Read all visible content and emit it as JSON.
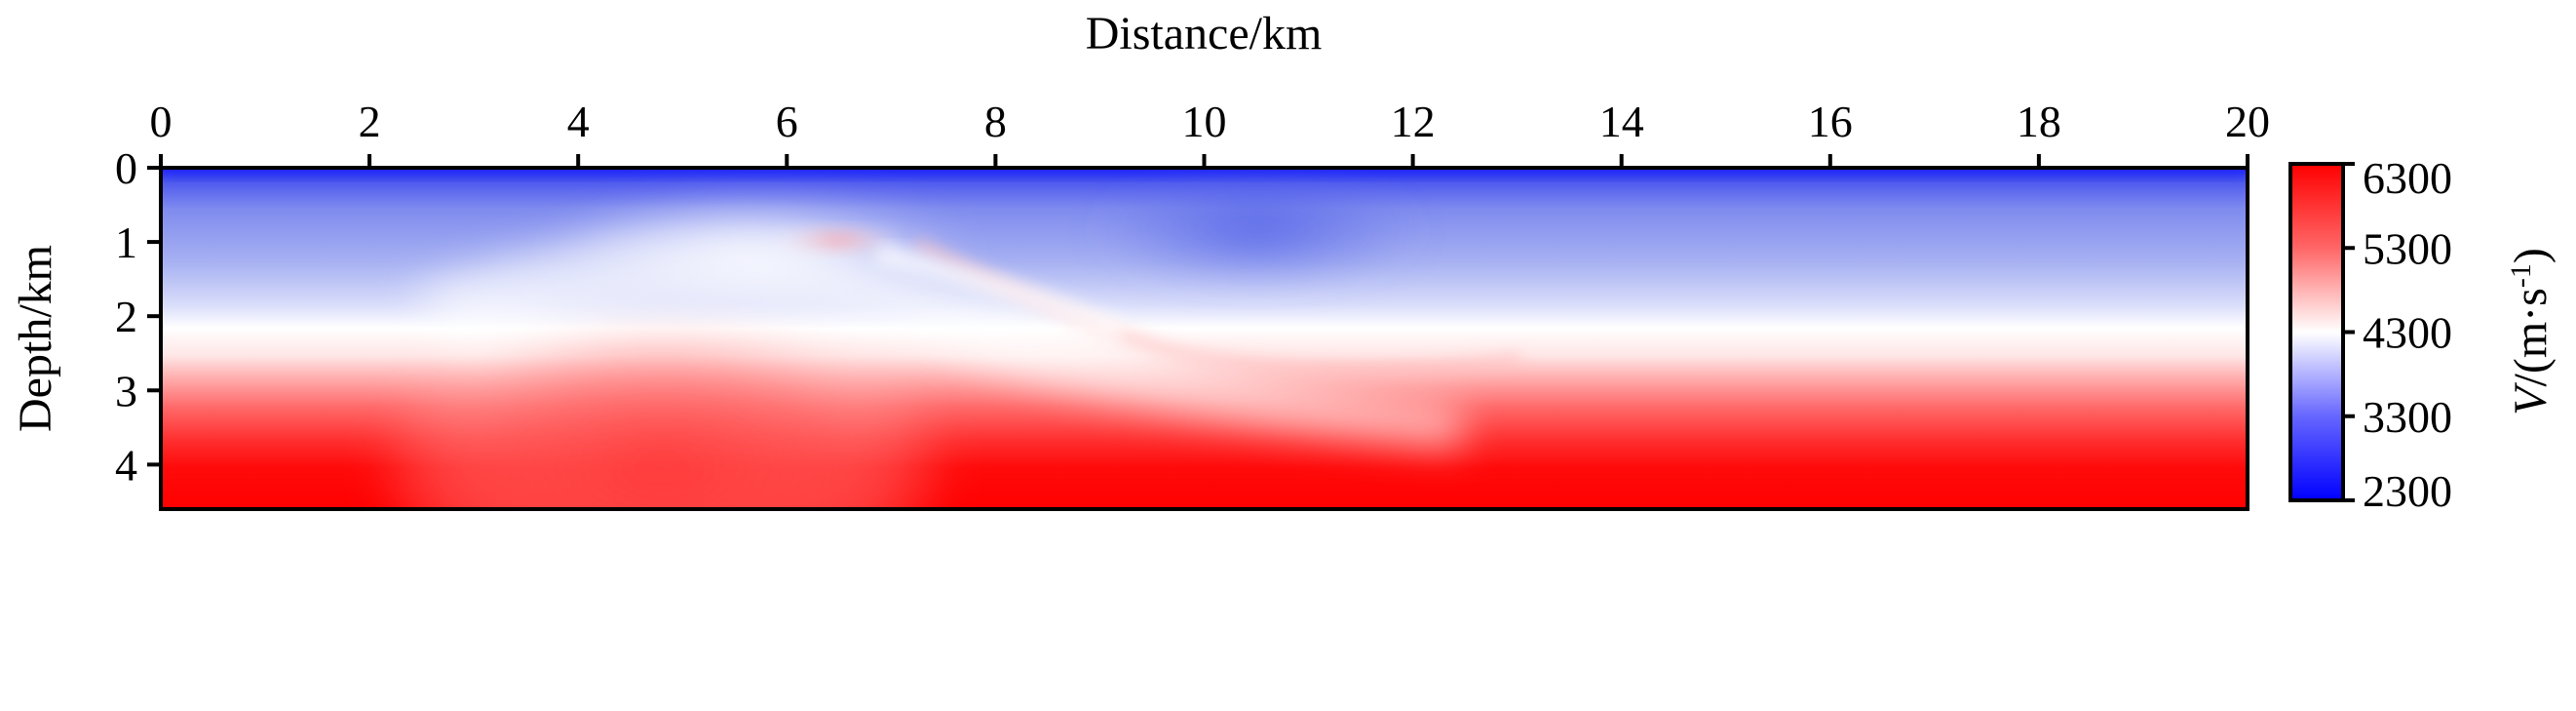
{
  "chart_data": {
    "type": "heatmap",
    "title": "",
    "xlabel": "Distance/km",
    "ylabel": "Depth/km",
    "x_ticks": [
      "0",
      "2",
      "4",
      "6",
      "8",
      "10",
      "12",
      "14",
      "16",
      "18",
      "20"
    ],
    "y_ticks": [
      "0",
      "1",
      "2",
      "3",
      "4"
    ],
    "xlim": [
      0,
      20
    ],
    "ylim": [
      4.6,
      0
    ],
    "x_axis_position": "top",
    "colorbar": {
      "label_italic": "V",
      "label_rest": "/(m·s",
      "label_sup": "-1",
      "label_close": ")",
      "ticks": [
        "6300",
        "5300",
        "4300",
        "3300",
        "2300"
      ],
      "range": [
        2300,
        6300
      ],
      "colormap": "bwr"
    },
    "velocity_model_description": {
      "near_surface_low_velocity_depth_km": [
        0,
        0.15
      ],
      "blue_layer_depth_km": [
        0,
        1.8
      ],
      "transition_white_depth_km": [
        1.8,
        2.6
      ],
      "high_velocity_base_depth_km": [
        3.8,
        4.6
      ],
      "anomalies": [
        {
          "kind": "high-velocity lens",
          "x_km": [
            5.5,
            7.2
          ],
          "depth_km": [
            0.5,
            0.7
          ]
        },
        {
          "kind": "dipping high-velocity reflector",
          "x_km": [
            7.0,
            13.0
          ],
          "depth_km": [
            1.0,
            1.9
          ]
        },
        {
          "kind": "uplifted high-velocity dome",
          "x_km": [
            3.0,
            7.0
          ],
          "depth_km": [
            2.2,
            3.6
          ]
        },
        {
          "kind": "low-velocity pocket",
          "x_km": [
            9.5,
            11.5
          ],
          "depth_km": [
            0.3,
            0.9
          ]
        }
      ]
    }
  }
}
